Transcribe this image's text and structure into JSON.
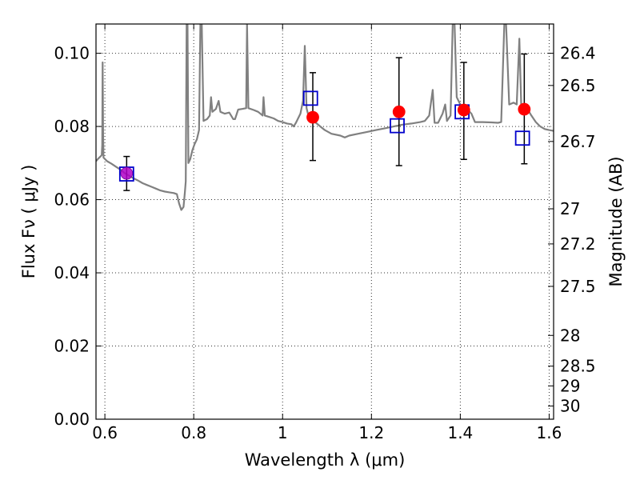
{
  "chart_data": {
    "type": "scatter",
    "title": "",
    "xlabel": "Wavelength  λ (μm)",
    "ylabel": "Flux  Fν  ( μJy )",
    "y2label": "Magnitude (AB)",
    "xlim": [
      0.58,
      1.61
    ],
    "ylim": [
      0.0,
      0.108
    ],
    "grid": true,
    "x_ticks": [
      0.6,
      0.8,
      1.0,
      1.2,
      1.4,
      1.6
    ],
    "x_tick_labels": [
      "0.6",
      "0.8",
      "1",
      "1.2",
      "1.4",
      "1.6"
    ],
    "y_ticks": [
      0.0,
      0.02,
      0.04,
      0.06,
      0.08,
      0.1
    ],
    "y_tick_labels": [
      "0.00",
      "0.02",
      "0.04",
      "0.06",
      "0.08",
      "0.10"
    ],
    "y2_ticks": [
      {
        "label": "26.4",
        "flux": 0.1
      },
      {
        "label": "26.5",
        "flux": 0.0912
      },
      {
        "label": "26.7",
        "flux": 0.0759
      },
      {
        "label": "27",
        "flux": 0.0575
      },
      {
        "label": "27.2",
        "flux": 0.0479
      },
      {
        "label": "27.5",
        "flux": 0.0363
      },
      {
        "label": "28",
        "flux": 0.0229
      },
      {
        "label": "28.5",
        "flux": 0.0145
      },
      {
        "label": "29",
        "flux": 0.0091
      },
      {
        "label": "30",
        "flux": 0.0036
      }
    ],
    "series": [
      {
        "kind": "line",
        "color": "#808080",
        "points": [
          [
            0.58,
            0.0705
          ],
          [
            0.585,
            0.0712
          ],
          [
            0.59,
            0.0718
          ],
          [
            0.593,
            0.0722
          ],
          [
            0.594,
            0.075
          ],
          [
            0.595,
            0.0975
          ],
          [
            0.596,
            0.078
          ],
          [
            0.597,
            0.0715
          ],
          [
            0.605,
            0.0705
          ],
          [
            0.615,
            0.0698
          ],
          [
            0.625,
            0.069
          ],
          [
            0.635,
            0.0682
          ],
          [
            0.645,
            0.0672
          ],
          [
            0.655,
            0.0665
          ],
          [
            0.665,
            0.0658
          ],
          [
            0.675,
            0.0652
          ],
          [
            0.685,
            0.0645
          ],
          [
            0.695,
            0.064
          ],
          [
            0.705,
            0.0635
          ],
          [
            0.715,
            0.063
          ],
          [
            0.725,
            0.0625
          ],
          [
            0.735,
            0.0622
          ],
          [
            0.745,
            0.062
          ],
          [
            0.755,
            0.0618
          ],
          [
            0.762,
            0.0615
          ],
          [
            0.767,
            0.059
          ],
          [
            0.772,
            0.0572
          ],
          [
            0.777,
            0.058
          ],
          [
            0.78,
            0.062
          ],
          [
            0.782,
            0.065
          ],
          [
            0.784,
            0.108
          ],
          [
            0.786,
            0.108
          ],
          [
            0.788,
            0.07
          ],
          [
            0.792,
            0.071
          ],
          [
            0.797,
            0.0735
          ],
          [
            0.802,
            0.0752
          ],
          [
            0.807,
            0.0765
          ],
          [
            0.812,
            0.079
          ],
          [
            0.815,
            0.108
          ],
          [
            0.818,
            0.108
          ],
          [
            0.822,
            0.0815
          ],
          [
            0.83,
            0.082
          ],
          [
            0.836,
            0.083
          ],
          [
            0.839,
            0.088
          ],
          [
            0.842,
            0.084
          ],
          [
            0.85,
            0.0848
          ],
          [
            0.856,
            0.087
          ],
          [
            0.86,
            0.084
          ],
          [
            0.87,
            0.0835
          ],
          [
            0.88,
            0.0838
          ],
          [
            0.889,
            0.082
          ],
          [
            0.893,
            0.082
          ],
          [
            0.9,
            0.0846
          ],
          [
            0.91,
            0.0848
          ],
          [
            0.918,
            0.085
          ],
          [
            0.92,
            0.108
          ],
          [
            0.923,
            0.085
          ],
          [
            0.935,
            0.0845
          ],
          [
            0.945,
            0.084
          ],
          [
            0.955,
            0.083
          ],
          [
            0.957,
            0.088
          ],
          [
            0.96,
            0.083
          ],
          [
            0.97,
            0.0826
          ],
          [
            0.98,
            0.0822
          ],
          [
            0.99,
            0.0815
          ],
          [
            1.0,
            0.0812
          ],
          [
            1.01,
            0.0808
          ],
          [
            1.02,
            0.0806
          ],
          [
            1.025,
            0.08
          ],
          [
            1.03,
            0.081
          ],
          [
            1.04,
            0.0835
          ],
          [
            1.046,
            0.087
          ],
          [
            1.05,
            0.102
          ],
          [
            1.054,
            0.085
          ],
          [
            1.06,
            0.082
          ],
          [
            1.075,
            0.081
          ],
          [
            1.085,
            0.08
          ],
          [
            1.095,
            0.079
          ],
          [
            1.11,
            0.078
          ],
          [
            1.13,
            0.0775
          ],
          [
            1.14,
            0.077
          ],
          [
            1.15,
            0.0775
          ],
          [
            1.17,
            0.078
          ],
          [
            1.19,
            0.0785
          ],
          [
            1.21,
            0.079
          ],
          [
            1.23,
            0.0795
          ],
          [
            1.25,
            0.08
          ],
          [
            1.27,
            0.0805
          ],
          [
            1.29,
            0.0808
          ],
          [
            1.31,
            0.0812
          ],
          [
            1.32,
            0.0815
          ],
          [
            1.33,
            0.083
          ],
          [
            1.338,
            0.09
          ],
          [
            1.342,
            0.081
          ],
          [
            1.35,
            0.081
          ],
          [
            1.36,
            0.0835
          ],
          [
            1.366,
            0.086
          ],
          [
            1.37,
            0.0815
          ],
          [
            1.378,
            0.083
          ],
          [
            1.383,
            0.108
          ],
          [
            1.387,
            0.108
          ],
          [
            1.392,
            0.088
          ],
          [
            1.4,
            0.086
          ],
          [
            1.415,
            0.0848
          ],
          [
            1.425,
            0.0835
          ],
          [
            1.433,
            0.0812
          ],
          [
            1.45,
            0.0812
          ],
          [
            1.47,
            0.0811
          ],
          [
            1.485,
            0.081
          ],
          [
            1.492,
            0.0812
          ],
          [
            1.499,
            0.108
          ],
          [
            1.503,
            0.108
          ],
          [
            1.51,
            0.086
          ],
          [
            1.52,
            0.0865
          ],
          [
            1.527,
            0.086
          ],
          [
            1.533,
            0.104
          ],
          [
            1.537,
            0.086
          ],
          [
            1.55,
            0.085
          ],
          [
            1.56,
            0.083
          ],
          [
            1.57,
            0.0812
          ],
          [
            1.58,
            0.08
          ],
          [
            1.59,
            0.0793
          ],
          [
            1.6,
            0.079
          ],
          [
            1.61,
            0.0788
          ]
        ]
      },
      {
        "kind": "points",
        "marker": "circle",
        "color": "#ff0000",
        "points": [
          {
            "x": 0.649,
            "y": 0.0672,
            "yerr_low": 0.0625,
            "yerr_high": 0.0718
          },
          {
            "x": 1.068,
            "y": 0.0825,
            "yerr_low": 0.0707,
            "yerr_high": 0.0947
          },
          {
            "x": 1.262,
            "y": 0.084,
            "yerr_low": 0.0693,
            "yerr_high": 0.0988
          },
          {
            "x": 1.408,
            "y": 0.0845,
            "yerr_low": 0.071,
            "yerr_high": 0.0975
          },
          {
            "x": 1.544,
            "y": 0.0847,
            "yerr_low": 0.0698,
            "yerr_high": 0.0998
          }
        ]
      },
      {
        "kind": "points",
        "marker": "square",
        "color": "#0000cc",
        "points": [
          {
            "x": 0.649,
            "y": 0.067
          },
          {
            "x": 1.063,
            "y": 0.0877
          },
          {
            "x": 1.258,
            "y": 0.0802
          },
          {
            "x": 1.404,
            "y": 0.084
          },
          {
            "x": 1.54,
            "y": 0.0768
          }
        ]
      }
    ]
  }
}
